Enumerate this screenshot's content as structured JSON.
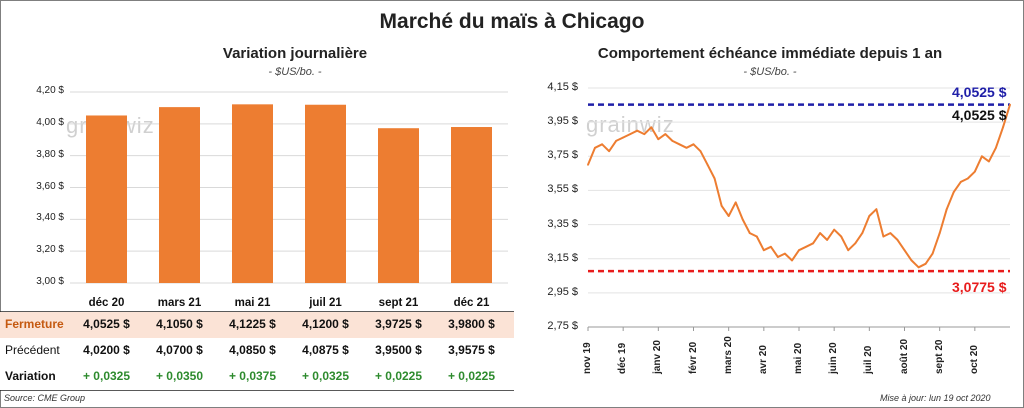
{
  "title": "Marché du maïs à Chicago",
  "watermark": "grainwiz",
  "source": "Source: CME Group",
  "updated": "Mise à jour: lun 19 oct 2020",
  "colors": {
    "bar": "#ED7D31",
    "line": "#ED7D31",
    "high": "#1F1FA8",
    "low": "#E81C1C",
    "positive": "#2E8B2E"
  },
  "chart_data": [
    {
      "type": "bar",
      "title": "Variation journalière",
      "unit": "- $US/bo. -",
      "categories": [
        "déc 20",
        "mars 21",
        "mai 21",
        "juil 21",
        "sept 21",
        "déc 21"
      ],
      "values": [
        4.0525,
        4.105,
        4.1225,
        4.12,
        3.9725,
        3.98
      ],
      "ylim": [
        3.0,
        4.2
      ],
      "yticks": [
        "4,20 $",
        "4,00 $",
        "3,80 $",
        "3,60 $",
        "3,40 $",
        "3,20 $",
        "3,00 $"
      ],
      "ytick_values": [
        4.2,
        4.0,
        3.8,
        3.6,
        3.4,
        3.2,
        3.0
      ]
    },
    {
      "type": "line",
      "title": "Comportement échéance immédiate depuis 1 an",
      "unit": "- $US/bo. -",
      "ylim": [
        2.75,
        4.15
      ],
      "yticks": [
        "4,15 $",
        "3,95 $",
        "3,75 $",
        "3,55 $",
        "3,35 $",
        "3,15 $",
        "2,95 $",
        "2,75 $"
      ],
      "ytick_values": [
        4.15,
        3.95,
        3.75,
        3.55,
        3.35,
        3.15,
        2.95,
        2.75
      ],
      "xticks": [
        "nov 19",
        "déc 19",
        "janv 20",
        "févr 20",
        "mars 20",
        "avr 20",
        "mai 20",
        "juin 20",
        "juil 20",
        "août 20",
        "sept 20",
        "oct 20"
      ],
      "high": 4.0525,
      "high_label": "4,0525 $",
      "low": 3.0775,
      "low_label": "3,0775 $",
      "last_label": "4,0525 $",
      "series": [
        {
          "x": [
            0,
            0.2,
            0.4,
            0.6,
            0.8,
            1,
            1.2,
            1.4,
            1.6,
            1.8,
            2,
            2.2,
            2.4,
            2.6,
            2.8,
            3,
            3.2,
            3.4,
            3.6,
            3.8,
            4,
            4.2,
            4.4,
            4.6,
            4.8,
            5,
            5.2,
            5.4,
            5.6,
            5.8,
            6,
            6.2,
            6.4,
            6.6,
            6.8,
            7,
            7.2,
            7.4,
            7.6,
            7.8,
            8,
            8.2,
            8.4,
            8.6,
            8.8,
            9,
            9.2,
            9.4,
            9.6,
            9.8,
            10,
            10.2,
            10.4,
            10.6,
            10.8,
            11,
            11.2,
            11.4,
            11.6,
            11.8,
            12
          ],
          "y": [
            3.7,
            3.8,
            3.82,
            3.78,
            3.84,
            3.86,
            3.88,
            3.9,
            3.88,
            3.92,
            3.85,
            3.88,
            3.84,
            3.82,
            3.8,
            3.82,
            3.78,
            3.7,
            3.62,
            3.46,
            3.4,
            3.48,
            3.38,
            3.3,
            3.28,
            3.2,
            3.22,
            3.16,
            3.18,
            3.14,
            3.2,
            3.22,
            3.24,
            3.3,
            3.26,
            3.32,
            3.28,
            3.2,
            3.24,
            3.3,
            3.4,
            3.44,
            3.28,
            3.3,
            3.26,
            3.2,
            3.14,
            3.1,
            3.12,
            3.18,
            3.3,
            3.44,
            3.54,
            3.6,
            3.62,
            3.66,
            3.75,
            3.72,
            3.8,
            3.92,
            4.0525
          ]
        }
      ]
    }
  ],
  "table": {
    "rows": [
      {
        "label": "Fermeture",
        "values": [
          "4,0525  $",
          "4,1050  $",
          "4,1225  $",
          "4,1200  $",
          "3,9725  $",
          "3,9800  $"
        ]
      },
      {
        "label": "Précédent",
        "values": [
          "4,0200  $",
          "4,0700  $",
          "4,0850  $",
          "4,0875  $",
          "3,9500  $",
          "3,9575  $"
        ]
      },
      {
        "label": "Variation",
        "values": [
          "+ 0,0325",
          "+ 0,0350",
          "+ 0,0375",
          "+ 0,0325",
          "+ 0,0225",
          "+ 0,0225"
        ]
      }
    ]
  }
}
